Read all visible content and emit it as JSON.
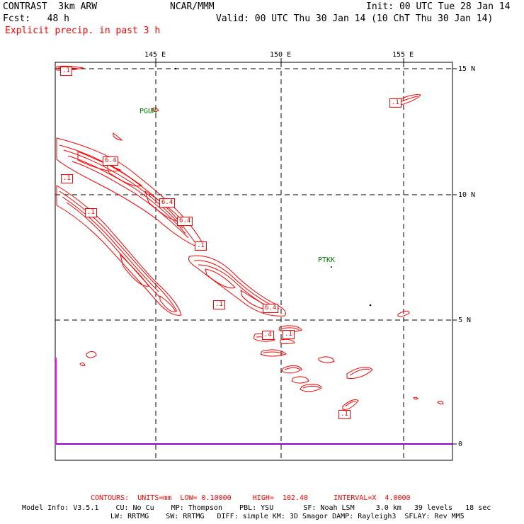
{
  "header": {
    "model_name": "CONTRAST  3km ARW",
    "org": "NCAR/MMM",
    "init": "Init: 00 UTC Tue 28 Jan 14",
    "fcst": "Fcst:   48 h",
    "valid": "Valid: 00 UTC Thu 30 Jan 14 (10 ChT Thu 30 Jan 14)",
    "field": "Explicit precip. in past 3 h"
  },
  "axes": {
    "lon_ticks": [
      "145 E",
      "150 E",
      "155 E"
    ],
    "lat_ticks": [
      "15 N",
      "10 N",
      "5 N",
      "0"
    ]
  },
  "stations": [
    "PGUM",
    "PTKK"
  ],
  "contour_labels": [
    ".1",
    ".1",
    "6.4",
    ".1",
    ".1",
    "6.4",
    "6.4",
    ".1",
    ".1",
    "6.4",
    ".4",
    ".1",
    ".1"
  ],
  "footer": {
    "contours": "CONTOURS:  UNITS=mm  LOW= 0.10000     HIGH=  102.40      INTERVAL=X  4.0000",
    "model_info_1": "Model Info: V3.5.1    CU: No Cu    MP: Thompson    PBL: YSU       SF: Noah LSM     3.0 km   39 levels   18 sec",
    "model_info_2": "LW: RRTMG    SW: RRTMG   DIFF: simple KM: 3D Smagor DAMP: Rayleigh3  SFLAY: Rev MM5"
  },
  "colors": {
    "precip_contour": "#ff0000",
    "station_label": "#007a00",
    "equator_line": "#9900cc",
    "bar": "#ff00ff"
  }
}
